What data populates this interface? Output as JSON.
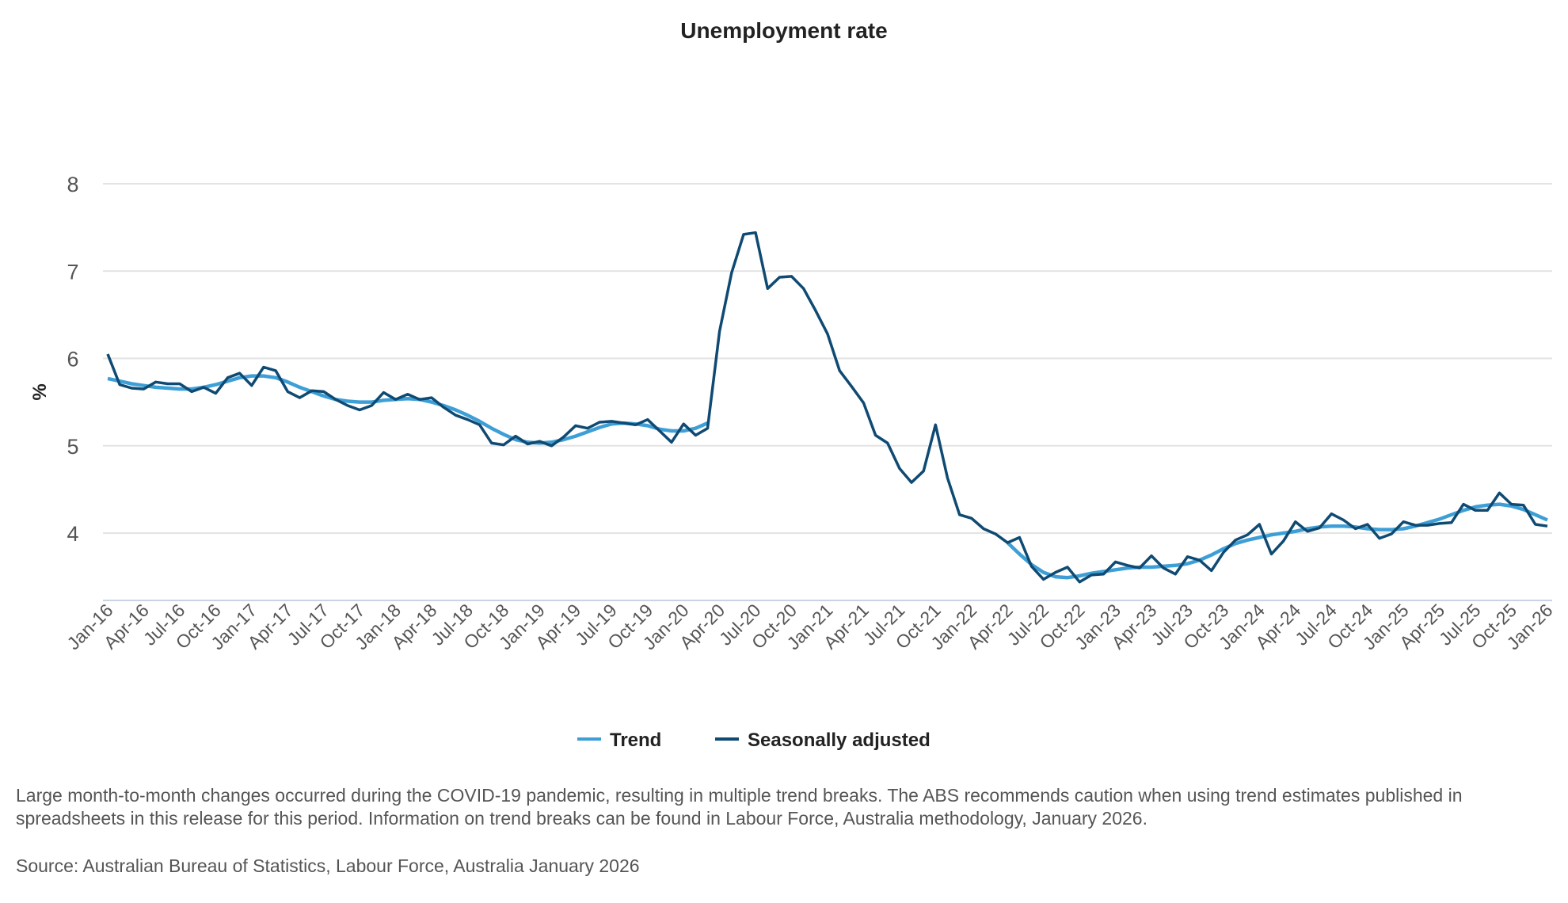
{
  "chart_data": {
    "type": "line",
    "title": "Unemployment rate",
    "xlabel": "",
    "ylabel": "%",
    "ylim": [
      3.23,
      8.4
    ],
    "yticks": [
      "8",
      "7",
      "6",
      "5",
      "4"
    ],
    "ytick_values": [
      8,
      7,
      6,
      5,
      4
    ],
    "grid": true,
    "legend_position": "bottom",
    "x_start": "Jan-16",
    "xtick_labels": [
      "Jan-16",
      "Apr-16",
      "Jul-16",
      "Oct-16",
      "Jan-17",
      "Apr-17",
      "Jul-17",
      "Oct-17",
      "Jan-18",
      "Apr-18",
      "Jul-18",
      "Oct-18",
      "Jan-19",
      "Apr-19",
      "Jul-19",
      "Oct-19",
      "Jan-20",
      "Apr-20",
      "Jul-20",
      "Oct-20",
      "Jan-21",
      "Apr-21",
      "Jul-21",
      "Oct-21",
      "Jan-22",
      "Apr-22",
      "Jul-22",
      "Oct-22",
      "Jan-23",
      "Apr-23",
      "Jul-23",
      "Oct-23",
      "Jan-24",
      "Apr-24",
      "Jul-24",
      "Oct-24",
      "Jan-25",
      "Apr-25",
      "Jul-25",
      "Oct-25",
      "Jan-26"
    ],
    "series": [
      {
        "name": "Trend",
        "color": "#3e9fd6",
        "values": [
          5.77,
          5.74,
          5.71,
          5.69,
          5.67,
          5.66,
          5.65,
          5.65,
          5.67,
          5.7,
          5.74,
          5.78,
          5.8,
          5.8,
          5.78,
          5.73,
          5.67,
          5.62,
          5.57,
          5.53,
          5.51,
          5.5,
          5.5,
          5.52,
          5.53,
          5.54,
          5.53,
          5.5,
          5.46,
          5.41,
          5.35,
          5.28,
          5.2,
          5.13,
          5.07,
          5.04,
          5.03,
          5.04,
          5.07,
          5.11,
          5.16,
          5.21,
          5.25,
          5.26,
          5.25,
          5.23,
          5.19,
          5.17,
          5.17,
          5.2,
          5.26,
          null,
          null,
          null,
          null,
          null,
          null,
          null,
          null,
          null,
          null,
          null,
          null,
          null,
          null,
          null,
          null,
          null,
          null,
          null,
          null,
          null,
          null,
          null,
          null,
          3.89,
          3.76,
          3.64,
          3.55,
          3.5,
          3.49,
          3.51,
          3.54,
          3.56,
          3.58,
          3.6,
          3.61,
          3.61,
          3.62,
          3.63,
          3.65,
          3.69,
          3.75,
          3.82,
          3.88,
          3.92,
          3.95,
          3.98,
          4.0,
          4.02,
          4.05,
          4.07,
          4.08,
          4.08,
          4.07,
          4.05,
          4.04,
          4.04,
          4.05,
          4.08,
          4.12,
          4.16,
          4.21,
          4.26,
          4.3,
          4.32,
          4.33,
          4.31,
          4.27,
          4.21,
          4.15
        ]
      },
      {
        "name": "Seasonally adjusted",
        "color": "#0f4a73",
        "values": [
          6.05,
          5.7,
          5.66,
          5.65,
          5.73,
          5.71,
          5.71,
          5.62,
          5.67,
          5.6,
          5.78,
          5.83,
          5.69,
          5.9,
          5.86,
          5.62,
          5.55,
          5.63,
          5.62,
          5.53,
          5.46,
          5.41,
          5.46,
          5.61,
          5.53,
          5.59,
          5.53,
          5.55,
          5.44,
          5.35,
          5.3,
          5.24,
          5.03,
          5.01,
          5.11,
          5.02,
          5.05,
          5.0,
          5.1,
          5.23,
          5.2,
          5.27,
          5.28,
          5.26,
          5.24,
          5.3,
          5.17,
          5.04,
          5.25,
          5.12,
          5.2,
          6.31,
          6.98,
          7.42,
          7.44,
          6.8,
          6.93,
          6.94,
          6.8,
          6.55,
          6.28,
          5.86,
          5.68,
          5.49,
          5.12,
          5.03,
          4.74,
          4.58,
          4.71,
          5.24,
          4.63,
          4.21,
          4.17,
          4.05,
          3.99,
          3.89,
          3.95,
          3.62,
          3.47,
          3.55,
          3.61,
          3.44,
          3.52,
          3.53,
          3.67,
          3.63,
          3.6,
          3.74,
          3.6,
          3.53,
          3.73,
          3.69,
          3.57,
          3.78,
          3.92,
          3.98,
          4.1,
          3.76,
          3.91,
          4.13,
          4.02,
          4.06,
          4.22,
          4.15,
          4.05,
          4.1,
          3.94,
          3.99,
          4.13,
          4.09,
          4.09,
          4.11,
          4.12,
          4.33,
          4.26,
          4.26,
          4.46,
          4.33,
          4.32,
          4.1,
          4.08
        ]
      }
    ]
  },
  "notes": {
    "caveat": "Large month-to-month changes occurred during the COVID-19 pandemic, resulting in multiple trend breaks. The ABS recommends caution when using trend estimates published in spreadsheets in this release for this period. Information on trend breaks can be found in Labour Force, Australia methodology, January 2026.",
    "source": "Source: Australian Bureau of Statistics, Labour Force, Australia January 2026"
  }
}
